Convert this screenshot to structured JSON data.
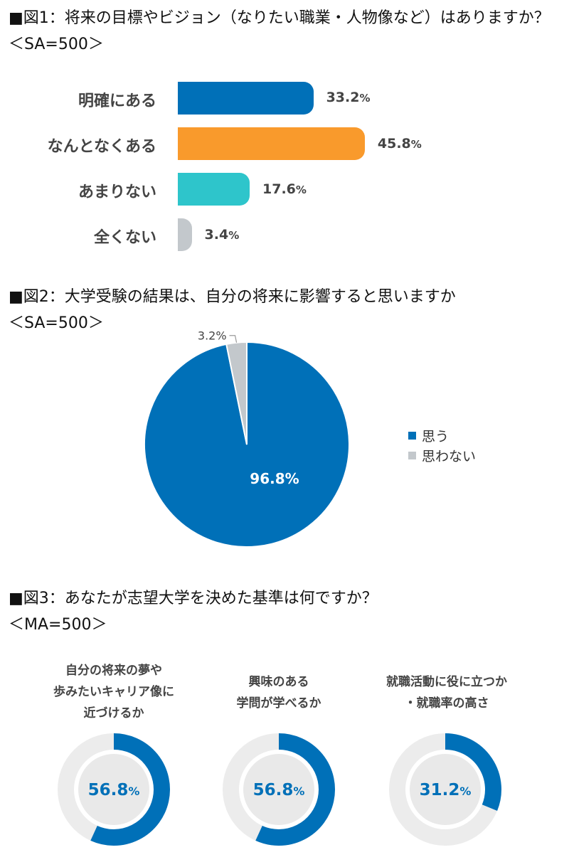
{
  "fig1": {
    "title": "■図1：将来の目標やビジョン（なりたい職業・人物像など）はありますか？",
    "sample": "＜SA=500＞"
  },
  "fig2": {
    "title": "■図2：大学受験の結果は、自分の将来に影響すると思いますか",
    "sample": "＜SA=500＞"
  },
  "fig3": {
    "title": "■図3：あなたが志望大学を決めた基準は何ですか？",
    "sample": "＜MA=500＞"
  },
  "colors": {
    "blue": "#0070b8",
    "orange": "#f99a2c",
    "teal": "#2ec5cb",
    "gray": "#c3c8cc",
    "track": "#ececec"
  },
  "chart_data": [
    {
      "type": "bar",
      "orientation": "horizontal",
      "categories": [
        "明確にある",
        "なんとなくある",
        "あまりない",
        "全くない"
      ],
      "values": [
        33.2,
        45.8,
        17.6,
        3.4
      ],
      "value_labels": [
        "33.2",
        "45.8",
        "17.6",
        "3.4"
      ],
      "unit": "%",
      "colors": [
        "#0070b8",
        "#f99a2c",
        "#2ec5cb",
        "#c3c8cc"
      ]
    },
    {
      "type": "pie",
      "categories": [
        "思う",
        "思わない"
      ],
      "values": [
        96.8,
        3.2
      ],
      "value_labels": [
        "96.8%",
        "3.2%"
      ],
      "colors": [
        "#0070b8",
        "#c3c8cc"
      ],
      "legend": "right"
    },
    {
      "type": "pie",
      "style": "donut",
      "items": [
        {
          "caption": [
            "自分の将来の夢や",
            "歩みたいキャリア像に",
            "近づけるか"
          ],
          "value": 56.8,
          "value_label": "56.8"
        },
        {
          "caption": [
            "興味のある",
            "学問が学べるか"
          ],
          "value": 56.8,
          "value_label": "56.8"
        },
        {
          "caption": [
            "就職活動に役に立つか",
            "・就職率の高さ"
          ],
          "value": 31.2,
          "value_label": "31.2"
        }
      ],
      "unit": "%"
    }
  ]
}
